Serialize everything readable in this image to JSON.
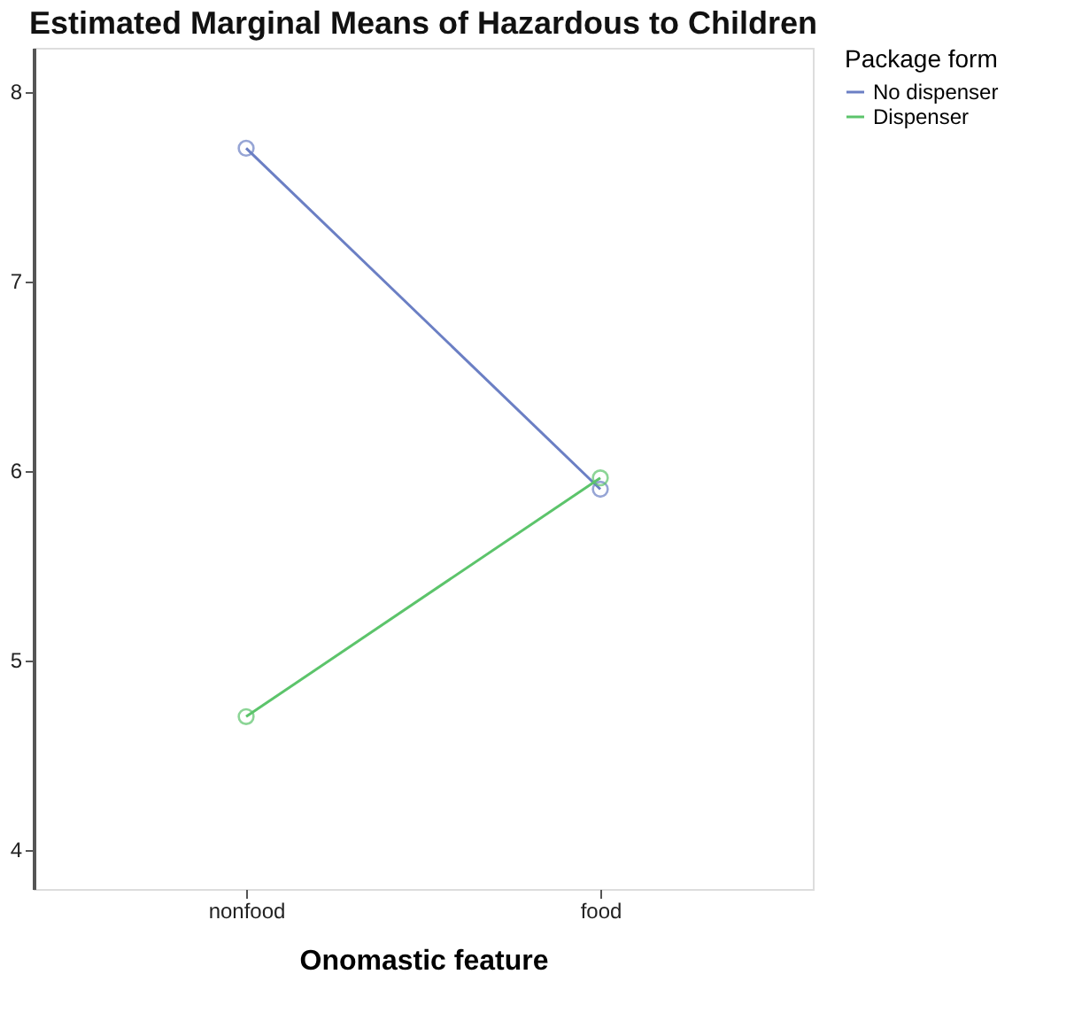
{
  "chart_data": {
    "type": "line",
    "title": "Estimated Marginal Means of Hazardous to Children",
    "xlabel": "Onomastic feature",
    "legend_title": "Package form",
    "categories": [
      "nonfood",
      "food"
    ],
    "series": [
      {
        "name": "No dispenser",
        "color": "#6b7fc4",
        "values": [
          7.7,
          5.9
        ]
      },
      {
        "name": "Dispenser",
        "color": "#5cc46b",
        "values": [
          4.7,
          5.96
        ]
      }
    ],
    "ylim": [
      3.79,
      8.23
    ],
    "yticks": [
      4,
      5,
      6,
      7,
      8
    ],
    "grid": false,
    "legend": "top right",
    "marker": "circle",
    "line_style": "solid"
  }
}
